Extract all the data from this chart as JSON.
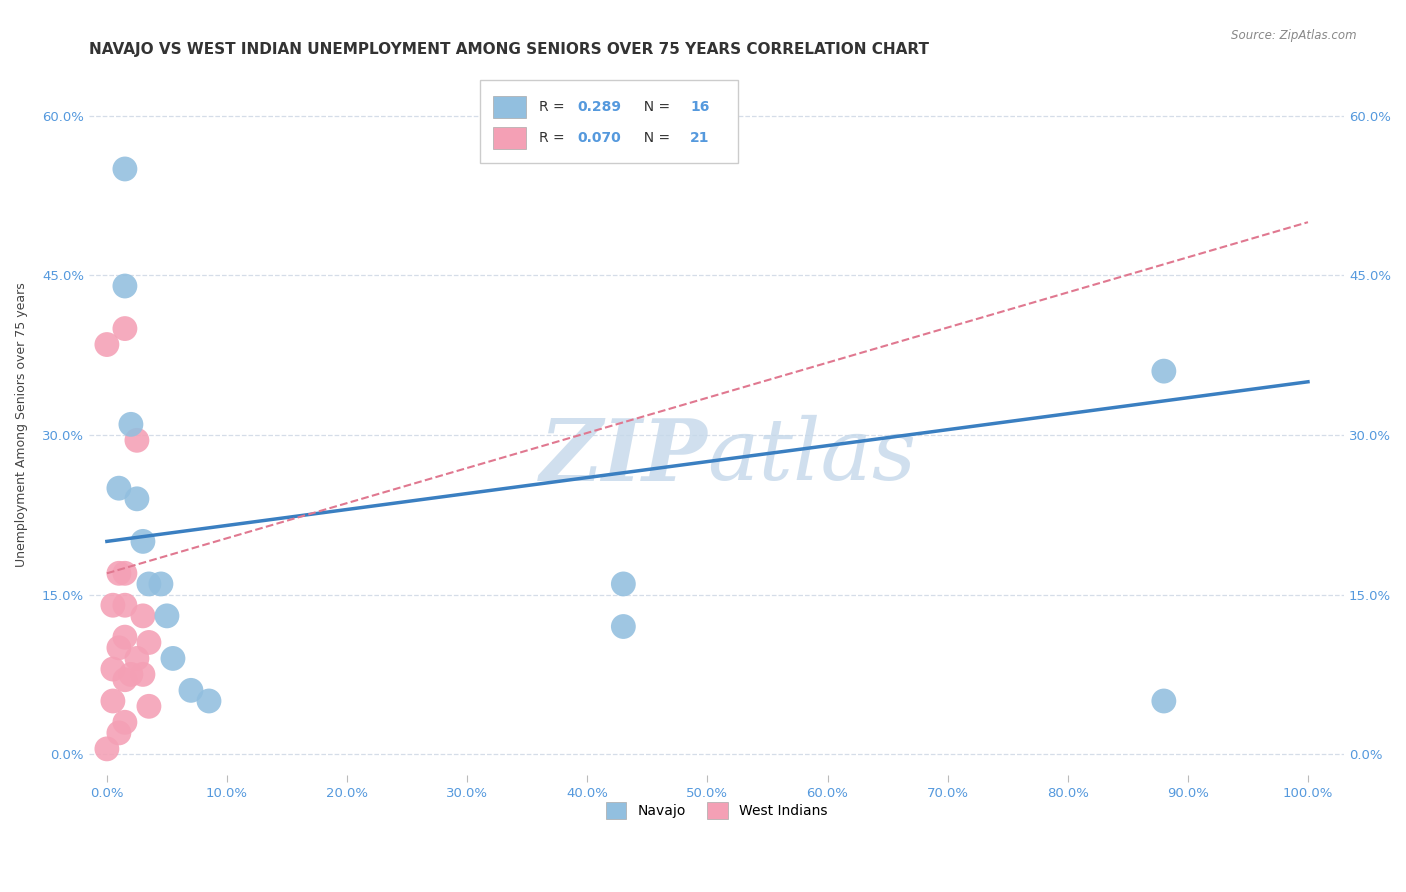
{
  "title": "NAVAJO VS WEST INDIAN UNEMPLOYMENT AMONG SENIORS OVER 75 YEARS CORRELATION CHART",
  "source": "Source: ZipAtlas.com",
  "navajo_R": "0.289",
  "navajo_N": "16",
  "west_indian_R": "0.070",
  "west_indian_N": "21",
  "navajo_color": "#92bfdf",
  "west_indian_color": "#f4a0b5",
  "navajo_line_color": "#3a7fc1",
  "west_indian_line_color": "#e07890",
  "watermark_color": "#c5d8ea",
  "background_color": "#ffffff",
  "grid_color": "#d5dde8",
  "axis_color": "#5599dd",
  "text_color": "#333333",
  "navajo_x": [
    1.0,
    1.5,
    1.5,
    2.0,
    2.5,
    3.0,
    3.5,
    4.5,
    5.0,
    5.5,
    7.0,
    8.5,
    43.0,
    43.0,
    88.0,
    88.0
  ],
  "navajo_y": [
    25.0,
    55.0,
    44.0,
    31.0,
    24.0,
    20.0,
    16.0,
    16.0,
    13.0,
    9.0,
    6.0,
    5.0,
    16.0,
    12.0,
    36.0,
    5.0
  ],
  "west_indian_x": [
    0.0,
    0.5,
    0.5,
    0.5,
    1.0,
    1.0,
    1.0,
    1.5,
    1.5,
    1.5,
    1.5,
    1.5,
    1.5,
    2.0,
    2.5,
    2.5,
    3.0,
    3.0,
    3.5,
    3.5,
    0.0
  ],
  "west_indian_y": [
    0.5,
    5.0,
    8.0,
    14.0,
    2.0,
    10.0,
    17.0,
    3.0,
    7.0,
    11.0,
    14.0,
    17.0,
    40.0,
    7.5,
    9.0,
    29.5,
    7.5,
    13.0,
    4.5,
    10.5,
    38.5
  ],
  "navajo_line_x0": 0,
  "navajo_line_y0": 20.0,
  "navajo_line_x1": 100,
  "navajo_line_y1": 35.0,
  "west_line_x0": 0,
  "west_line_y0": 17.0,
  "west_line_x1": 100,
  "west_line_y1": 50.0,
  "legend_label_navajo": "Navajo",
  "legend_label_west_indians": "West Indians",
  "x_tick_vals": [
    0,
    10,
    20,
    30,
    40,
    50,
    60,
    70,
    80,
    90,
    100
  ],
  "y_tick_vals": [
    0,
    15,
    30,
    45,
    60
  ],
  "xlim": [
    -1.5,
    103
  ],
  "ylim": [
    -2,
    64
  ]
}
